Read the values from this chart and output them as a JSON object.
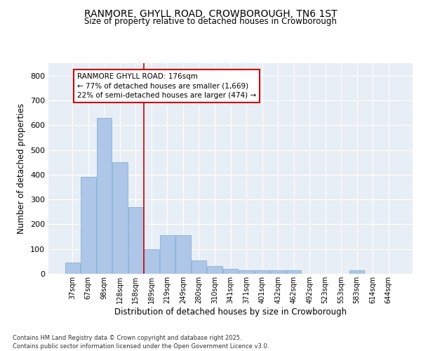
{
  "title": "RANMORE, GHYLL ROAD, CROWBOROUGH, TN6 1ST",
  "subtitle": "Size of property relative to detached houses in Crowborough",
  "xlabel": "Distribution of detached houses by size in Crowborough",
  "ylabel": "Number of detached properties",
  "categories": [
    "37sqm",
    "67sqm",
    "98sqm",
    "128sqm",
    "158sqm",
    "189sqm",
    "219sqm",
    "249sqm",
    "280sqm",
    "310sqm",
    "341sqm",
    "371sqm",
    "401sqm",
    "432sqm",
    "462sqm",
    "492sqm",
    "523sqm",
    "553sqm",
    "583sqm",
    "614sqm",
    "644sqm"
  ],
  "values": [
    45,
    390,
    630,
    450,
    270,
    100,
    155,
    155,
    55,
    30,
    20,
    15,
    15,
    15,
    15,
    0,
    0,
    0,
    15,
    0,
    0
  ],
  "bar_color": "#aec6e8",
  "bar_edge_color": "#7aaad0",
  "background_color": "#e8eef5",
  "grid_color": "#ffffff",
  "annotation_text": "RANMORE GHYLL ROAD: 176sqm\n← 77% of detached houses are smaller (1,669)\n22% of semi-detached houses are larger (474) →",
  "vline_color": "#cc0000",
  "annotation_box_edgecolor": "#cc0000",
  "footer_text": "Contains HM Land Registry data © Crown copyright and database right 2025.\nContains public sector information licensed under the Open Government Licence v3.0.",
  "ylim": [
    0,
    850
  ],
  "yticks": [
    0,
    100,
    200,
    300,
    400,
    500,
    600,
    700,
    800
  ]
}
